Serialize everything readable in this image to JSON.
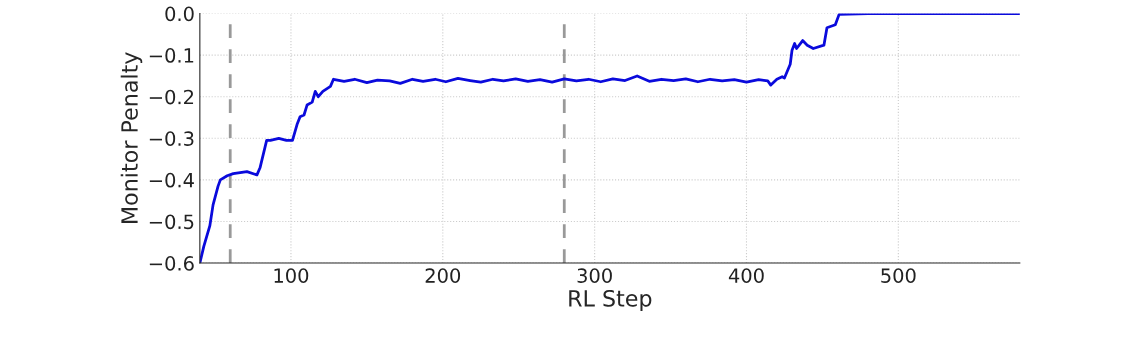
{
  "chart_data": {
    "type": "line",
    "xlabel": "RL Step",
    "ylabel": "Monitor Penalty",
    "xlim": [
      40,
      580
    ],
    "xticks": [
      100,
      200,
      300,
      400,
      500
    ],
    "ylim": [
      -0.6,
      0.0
    ],
    "yticks": [
      {
        "value": -0.6,
        "label": "−0.6"
      },
      {
        "value": -0.5,
        "label": "−0.5"
      },
      {
        "value": -0.4,
        "label": "−0.4"
      },
      {
        "value": -0.3,
        "label": "−0.3"
      },
      {
        "value": -0.2,
        "label": "−0.2"
      },
      {
        "value": -0.1,
        "label": "−0.1"
      },
      {
        "value": 0.0,
        "label": "0.0"
      }
    ],
    "grid": true,
    "line_style": "solid",
    "marker": "none",
    "ref_lines": [
      {
        "axis": "x",
        "value": 60,
        "color": "#999999",
        "line_style": "dashed"
      },
      {
        "axis": "x",
        "value": 280,
        "color": "#999999",
        "line_style": "dashed"
      }
    ],
    "series": [
      {
        "color": "#0a0adc",
        "x": [
          40,
          42.6,
          46.6,
          48.7,
          52,
          53.5,
          58,
          62,
          71,
          77.6,
          79.7,
          84,
          86.5,
          92,
          97,
          101,
          104,
          106,
          108.6,
          110.6,
          114,
          116,
          118,
          121,
          126,
          128,
          135,
          142,
          150,
          157,
          165,
          172,
          180,
          187,
          195,
          202,
          210,
          218,
          225,
          233,
          240,
          248,
          256,
          264,
          272,
          280,
          288,
          296,
          304,
          312,
          320,
          328,
          336,
          344,
          352,
          360,
          368,
          376,
          384,
          392,
          400,
          408,
          414,
          416,
          420,
          423.5,
          425,
          428.8,
          430,
          431.7,
          433,
          437,
          440,
          444,
          451,
          453,
          458.5,
          461,
          480,
          500,
          520,
          540,
          560,
          580
        ],
        "values": [
          -0.6,
          -0.56,
          -0.51,
          -0.46,
          -0.415,
          -0.4,
          -0.39,
          -0.385,
          -0.38,
          -0.388,
          -0.37,
          -0.305,
          -0.305,
          -0.3,
          -0.305,
          -0.305,
          -0.267,
          -0.248,
          -0.244,
          -0.22,
          -0.213,
          -0.187,
          -0.2,
          -0.187,
          -0.175,
          -0.158,
          -0.163,
          -0.158,
          -0.166,
          -0.16,
          -0.162,
          -0.168,
          -0.158,
          -0.163,
          -0.158,
          -0.164,
          -0.156,
          -0.161,
          -0.165,
          -0.158,
          -0.162,
          -0.157,
          -0.163,
          -0.159,
          -0.165,
          -0.157,
          -0.162,
          -0.158,
          -0.164,
          -0.157,
          -0.161,
          -0.15,
          -0.163,
          -0.158,
          -0.161,
          -0.157,
          -0.164,
          -0.158,
          -0.162,
          -0.159,
          -0.165,
          -0.159,
          -0.162,
          -0.172,
          -0.158,
          -0.152,
          -0.155,
          -0.122,
          -0.088,
          -0.072,
          -0.084,
          -0.065,
          -0.076,
          -0.084,
          -0.076,
          -0.034,
          -0.027,
          -0.002,
          0.0,
          0.0,
          0.0,
          0.0,
          0.0,
          0.0
        ]
      }
    ]
  }
}
